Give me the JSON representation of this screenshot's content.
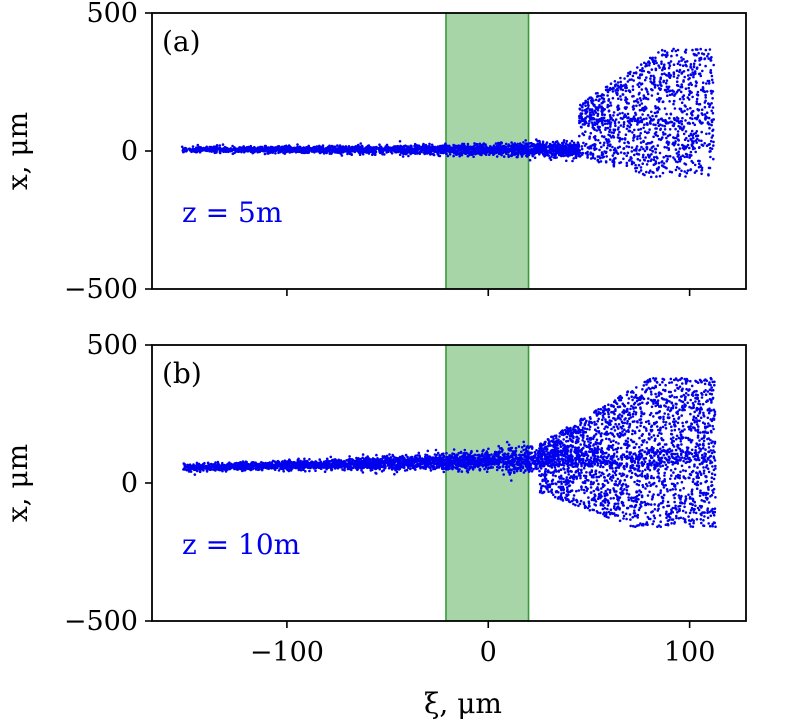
{
  "colors": {
    "scatter": "#0000ee",
    "band_fill": "#5fb25f",
    "band_edge": "#3a9a3a",
    "axes": "#000000"
  },
  "chart_data": [
    {
      "type": "scatter",
      "panel_label": "(a)",
      "annotation": "z = 5m",
      "ylabel": "x, μm",
      "xlabel": "",
      "xlim": [
        -167,
        128
      ],
      "ylim": [
        -500,
        500
      ],
      "xticks": [
        -100,
        0,
        100
      ],
      "xtick_labels": [
        "",
        "",
        ""
      ],
      "yticks": [
        500,
        0,
        -500
      ],
      "ytick_labels": [
        "500",
        "0",
        "−500"
      ],
      "shaded_band": [
        -21,
        20
      ],
      "grid": false,
      "cloud": {
        "core": {
          "x_range": [
            -152,
            45
          ],
          "center_y_start": 5,
          "center_y_end": 5,
          "half_width_start": 10,
          "half_width_end": 30
        },
        "head": {
          "x_range": [
            45,
            112
          ],
          "y_range": [
            -95,
            400
          ],
          "upper_lobe_y": [
            100,
            370
          ],
          "lower_band_y": [
            -95,
            120
          ]
        }
      }
    },
    {
      "type": "scatter",
      "panel_label": "(b)",
      "annotation": "z = 10m",
      "ylabel": "x, μm",
      "xlabel": "ξ, μm",
      "xlim": [
        -167,
        128
      ],
      "ylim": [
        -500,
        500
      ],
      "xticks": [
        -100,
        0,
        100
      ],
      "xtick_labels": [
        "−100",
        "0",
        "100"
      ],
      "yticks": [
        500,
        0,
        -500
      ],
      "ytick_labels": [
        "500",
        "0",
        "−500"
      ],
      "shaded_band": [
        -21,
        20
      ],
      "grid": false,
      "cloud": {
        "core": {
          "x_range": [
            -152,
            25
          ],
          "center_y_start": 55,
          "center_y_end": 85,
          "half_width_start": 14,
          "half_width_end": 45
        },
        "head": {
          "x_range": [
            25,
            113
          ],
          "y_range": [
            -160,
            470
          ],
          "upper_lobe_y": [
            60,
            380
          ],
          "lower_band_y": [
            -160,
            120
          ]
        }
      }
    }
  ]
}
